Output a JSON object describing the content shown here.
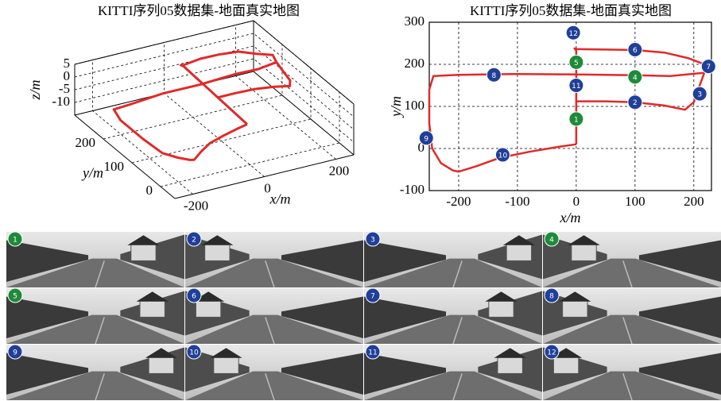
{
  "chart_data": [
    {
      "type": "line3d",
      "title": "KITTI序列05数据集-地面真实地图",
      "xlabel": "x/m",
      "ylabel": "y/m",
      "zlabel": "z/m",
      "color": "#e02a2a",
      "x": [
        0,
        0,
        0,
        -3,
        2,
        50,
        100,
        150,
        190,
        222,
        218,
        160,
        100,
        0,
        -100,
        -200,
        -243,
        -250,
        -250,
        -245,
        -230,
        -210,
        -200,
        -170,
        -130,
        -80,
        -30,
        0,
        null,
        0,
        50,
        100,
        150,
        185,
        200,
        210,
        218
      ],
      "y": [
        10,
        120,
        232,
        238,
        236,
        235,
        234,
        228,
        215,
        198,
        180,
        172,
        174,
        176,
        177,
        175,
        172,
        140,
        60,
        0,
        -35,
        -52,
        -55,
        -42,
        -22,
        -8,
        4,
        10,
        null,
        112,
        112,
        110,
        102,
        92,
        110,
        150,
        180
      ],
      "z": [
        0,
        1,
        2,
        2,
        2,
        3,
        3,
        3,
        2,
        2,
        1,
        1,
        1,
        0,
        0,
        -1,
        -1,
        -2,
        -2,
        -2,
        -1,
        -1,
        -1,
        0,
        0,
        0,
        0,
        0,
        null,
        1,
        1,
        1,
        1,
        1,
        1,
        1,
        1
      ],
      "xlim": [
        -250,
        250
      ],
      "ylim": [
        -50,
        300
      ],
      "zlim": [
        -15,
        5
      ],
      "xticks": [
        -200,
        0,
        200
      ],
      "yticks": [
        0,
        100,
        200
      ],
      "zticks": [
        -10,
        -5,
        0,
        5
      ],
      "grid": true
    },
    {
      "type": "line",
      "title": "KITTI序列05数据集-地面真实地图",
      "xlabel": "x/m",
      "ylabel": "y/m",
      "color": "#e02a2a",
      "x": [
        0,
        0,
        0,
        -3,
        2,
        50,
        100,
        150,
        190,
        222,
        218,
        160,
        100,
        0,
        -100,
        -200,
        -243,
        -250,
        -250,
        -245,
        -230,
        -210,
        -200,
        -170,
        -130,
        -80,
        -30,
        0,
        null,
        0,
        50,
        100,
        150,
        185,
        200,
        210,
        218
      ],
      "y": [
        10,
        120,
        232,
        238,
        236,
        235,
        234,
        228,
        215,
        198,
        180,
        172,
        174,
        176,
        177,
        175,
        172,
        140,
        60,
        0,
        -35,
        -52,
        -55,
        -42,
        -22,
        -8,
        4,
        10,
        null,
        112,
        112,
        110,
        102,
        92,
        110,
        150,
        180
      ],
      "xlim": [
        -250,
        230
      ],
      "ylim": [
        -100,
        300
      ],
      "xticks": [
        -200,
        -100,
        0,
        100,
        200
      ],
      "yticks": [
        -100,
        0,
        100,
        200,
        300
      ],
      "grid": true,
      "markers": {
        "labels": [
          "1",
          "2",
          "3",
          "4",
          "5",
          "6",
          "7",
          "8",
          "9",
          "10",
          "11",
          "12"
        ],
        "x": [
          0,
          100,
          210,
          100,
          0,
          100,
          225,
          -140,
          -255,
          -125,
          0,
          -5
        ],
        "y": [
          70,
          110,
          130,
          170,
          205,
          235,
          195,
          175,
          25,
          -15,
          150,
          275
        ],
        "colors": [
          "#1e8a3a",
          "#1f3f99",
          "#1f3f99",
          "#1e8a3a",
          "#1e8a3a",
          "#1f3f99",
          "#1f3f99",
          "#1f3f99",
          "#1f3f99",
          "#1f3f99",
          "#1f3f99",
          "#1f3f99"
        ]
      }
    }
  ],
  "photos": {
    "labels": [
      "1",
      "2",
      "3",
      "4",
      "5",
      "6",
      "7",
      "8",
      "9",
      "10",
      "11",
      "12"
    ],
    "colors": [
      "#1e8a3a",
      "#1f3f99",
      "#1f3f99",
      "#1e8a3a",
      "#1e8a3a",
      "#1f3f99",
      "#1f3f99",
      "#1f3f99",
      "#1f3f99",
      "#1f3f99",
      "#1f3f99",
      "#1f3f99"
    ]
  }
}
